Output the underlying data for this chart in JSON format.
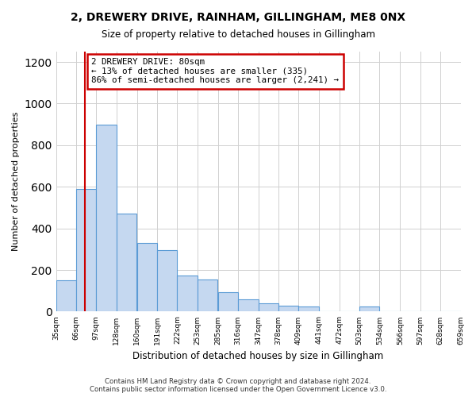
{
  "title": "2, DREWERY DRIVE, RAINHAM, GILLINGHAM, ME8 0NX",
  "subtitle": "Size of property relative to detached houses in Gillingham",
  "xlabel": "Distribution of detached houses by size in Gillingham",
  "ylabel": "Number of detached properties",
  "bar_labels": [
    "35sqm",
    "66sqm",
    "97sqm",
    "128sqm",
    "160sqm",
    "191sqm",
    "222sqm",
    "253sqm",
    "285sqm",
    "316sqm",
    "347sqm",
    "378sqm",
    "409sqm",
    "441sqm",
    "472sqm",
    "503sqm",
    "534sqm",
    "566sqm",
    "597sqm",
    "628sqm",
    "659sqm"
  ],
  "bar_starts": [
    35,
    66,
    97,
    128,
    160,
    191,
    222,
    253,
    285,
    316,
    347,
    378,
    409,
    441,
    472,
    503,
    534,
    566,
    597,
    628
  ],
  "bar_values": [
    150,
    590,
    900,
    470,
    330,
    295,
    175,
    155,
    95,
    60,
    40,
    30,
    25,
    0,
    0,
    25,
    0,
    0,
    0,
    0
  ],
  "bar_color": "#c5d8f0",
  "bar_edge_color": "#5b9bd5",
  "annotation_text": "2 DREWERY DRIVE: 80sqm\n← 13% of detached houses are smaller (335)\n86% of semi-detached houses are larger (2,241) →",
  "annotation_box_color": "#ffffff",
  "annotation_box_edge": "#cc0000",
  "red_line_x": 80,
  "ylim": [
    0,
    1250
  ],
  "yticks": [
    0,
    200,
    400,
    600,
    800,
    1000,
    1200
  ],
  "footer": "Contains HM Land Registry data © Crown copyright and database right 2024.\nContains public sector information licensed under the Open Government Licence v3.0.",
  "background_color": "#ffffff",
  "grid_color": "#d0d0d0",
  "bin_width": 31
}
